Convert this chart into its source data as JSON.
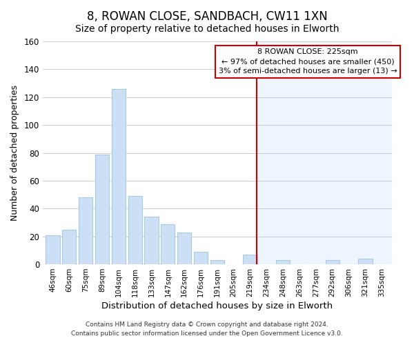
{
  "title": "8, ROWAN CLOSE, SANDBACH, CW11 1XN",
  "subtitle": "Size of property relative to detached houses in Elworth",
  "xlabel": "Distribution of detached houses by size in Elworth",
  "ylabel": "Number of detached properties",
  "bar_labels": [
    "46sqm",
    "60sqm",
    "75sqm",
    "89sqm",
    "104sqm",
    "118sqm",
    "133sqm",
    "147sqm",
    "162sqm",
    "176sqm",
    "191sqm",
    "205sqm",
    "219sqm",
    "234sqm",
    "248sqm",
    "263sqm",
    "277sqm",
    "292sqm",
    "306sqm",
    "321sqm",
    "335sqm"
  ],
  "bar_heights": [
    21,
    25,
    48,
    79,
    126,
    49,
    34,
    29,
    23,
    9,
    3,
    0,
    7,
    0,
    3,
    0,
    0,
    3,
    0,
    4,
    0
  ],
  "bar_color": "#cce0f5",
  "bar_edge_color": "#a8c8e8",
  "ylim": [
    0,
    160
  ],
  "yticks": [
    0,
    20,
    40,
    60,
    80,
    100,
    120,
    140,
    160
  ],
  "vline_color": "#cc0000",
  "annotation_title": "8 ROWAN CLOSE: 225sqm",
  "annotation_line1": "← 97% of detached houses are smaller (450)",
  "annotation_line2": "3% of semi-detached houses are larger (13) →",
  "annotation_box_color": "#ffffff",
  "annotation_box_edge": "#cc0000",
  "footer1": "Contains HM Land Registry data © Crown copyright and database right 2024.",
  "footer2": "Contains public sector information licensed under the Open Government Licence v3.0.",
  "bg_left": "#ffffff",
  "bg_right": "#dde8f5",
  "title_fontsize": 12,
  "subtitle_fontsize": 10
}
